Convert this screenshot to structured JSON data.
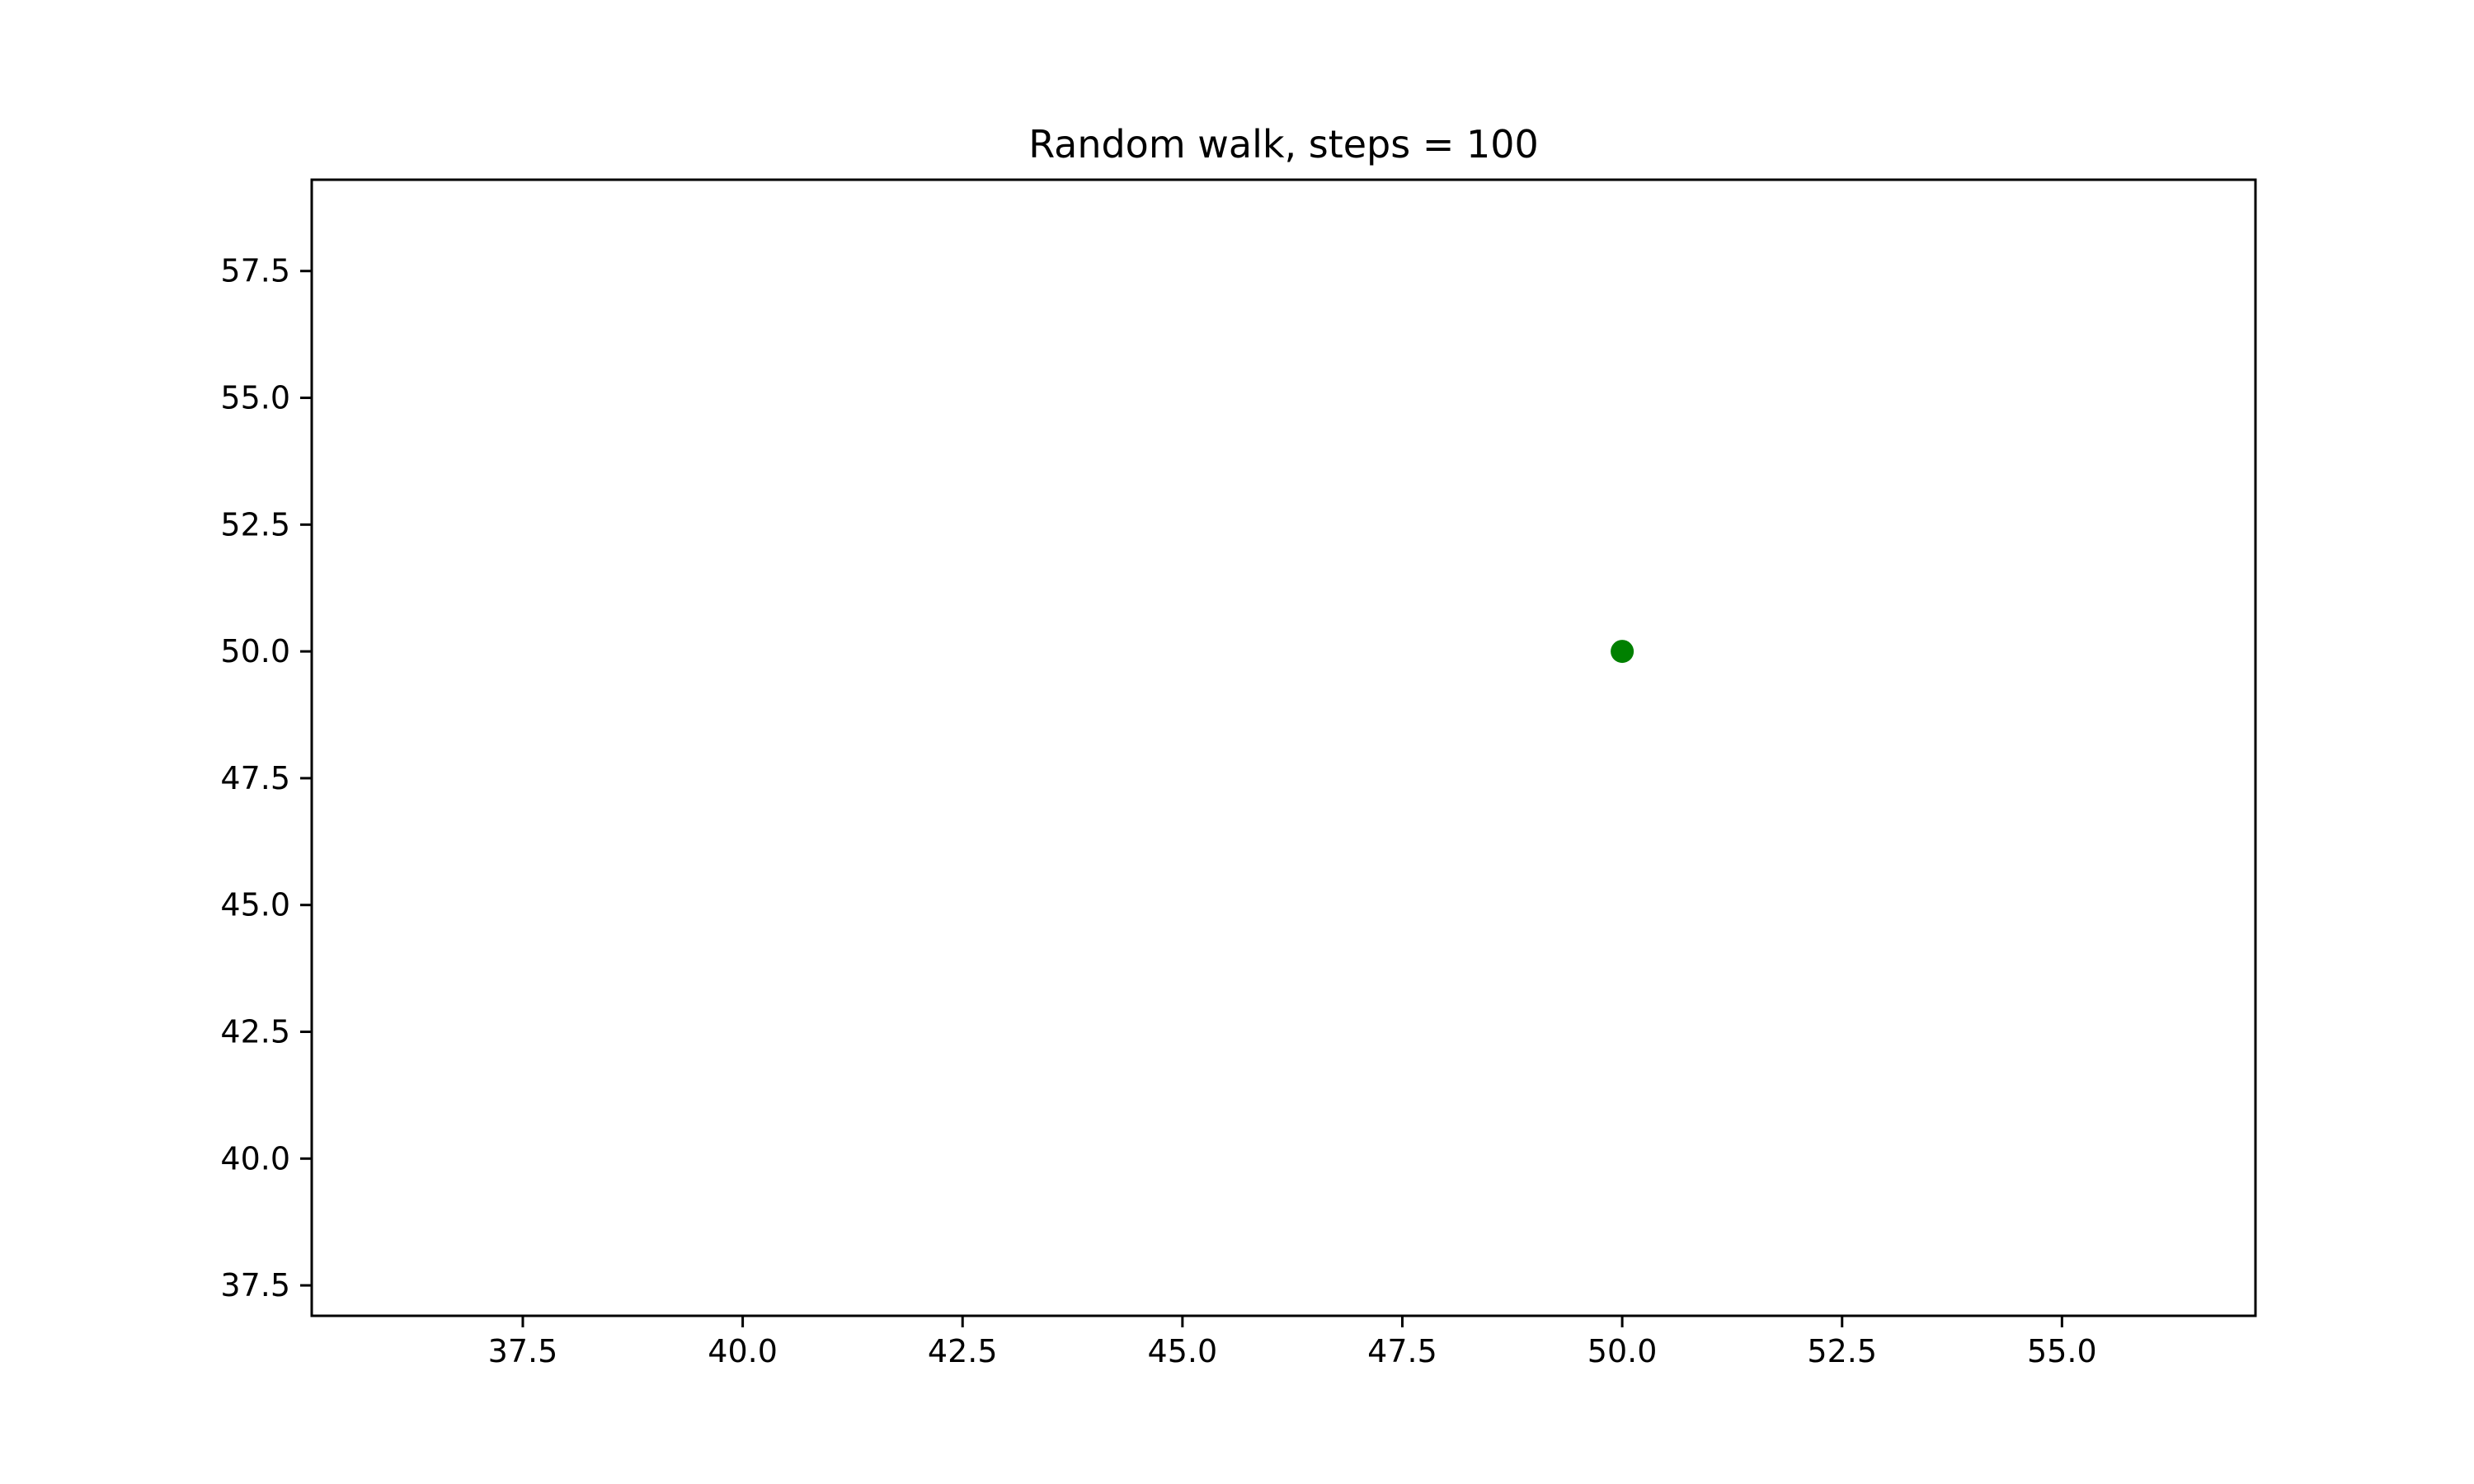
{
  "chart_data": {
    "type": "scatter",
    "title": "Random walk, steps = 100",
    "xlabel": "",
    "ylabel": "",
    "xlim": [
      35.1,
      57.2
    ],
    "ylim": [
      36.9,
      59.3
    ],
    "x_ticks": [
      "37.5",
      "40.0",
      "42.5",
      "45.0",
      "47.5",
      "50.0",
      "52.5",
      "55.0"
    ],
    "y_ticks": [
      "37.5",
      "40.0",
      "42.5",
      "45.0",
      "47.5",
      "50.0",
      "52.5",
      "55.0",
      "57.5"
    ],
    "grid": false,
    "series": [
      {
        "x": [
          50.0
        ],
        "y": [
          50.0
        ],
        "color": "#008000",
        "marker": "circle"
      }
    ]
  }
}
